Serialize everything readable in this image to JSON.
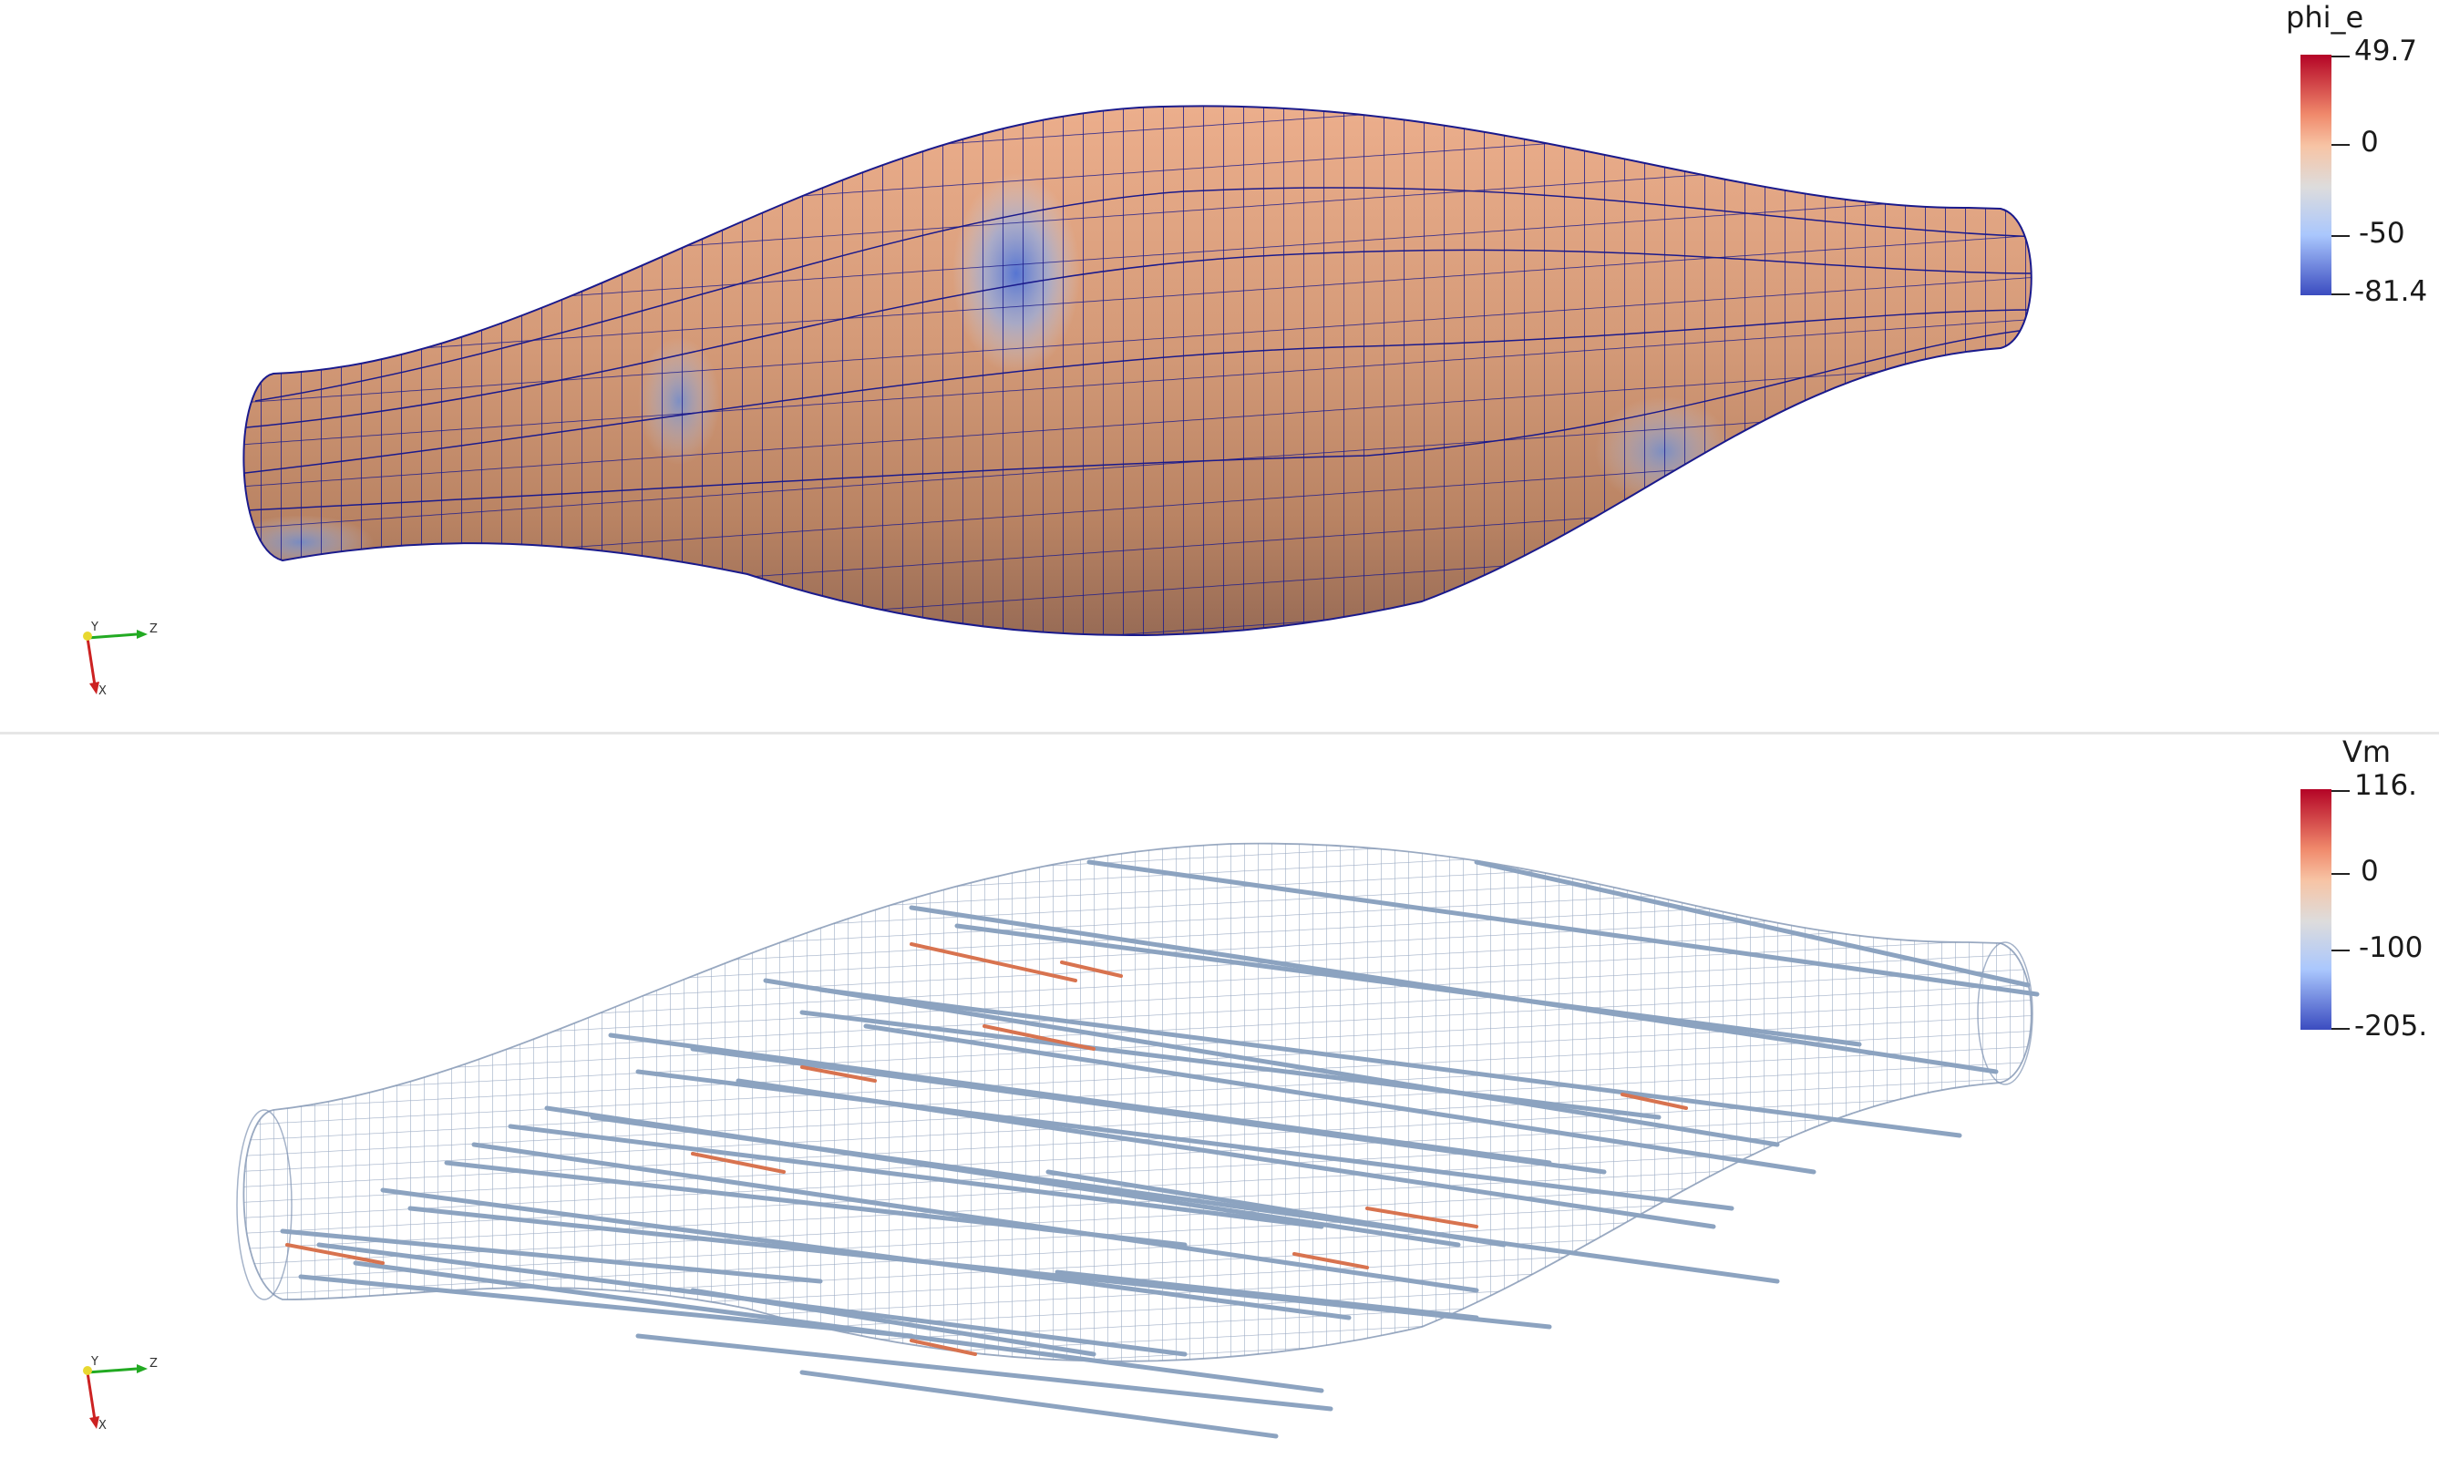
{
  "top_view": {
    "array_name": "phi_e",
    "colorbar": {
      "max_label": "49.7",
      "ticks": [
        "0",
        "-50"
      ],
      "min_label": "-81.4",
      "colors": [
        "#3b4cc0",
        "#aac7fd",
        "#dddcdc",
        "#f7af91",
        "#b40426"
      ]
    },
    "surface_color": "#e0a37f",
    "mesh_color": "#1a1a8c",
    "axes": {
      "y": "Y",
      "z": "Z",
      "x": "X"
    }
  },
  "bottom_view": {
    "array_name": "Vm",
    "colorbar": {
      "max_label": "116.",
      "ticks": [
        "0",
        "-100"
      ],
      "min_label": "-205.",
      "colors": [
        "#3b4cc0",
        "#aac7fd",
        "#dddcdc",
        "#f7af91",
        "#b40426"
      ]
    },
    "fiber_color": "#8ca3c0",
    "active_fiber_color": "#d8734f",
    "wireframe_color": "#7f93b2",
    "axes": {
      "y": "Y",
      "z": "Z",
      "x": "X"
    }
  }
}
